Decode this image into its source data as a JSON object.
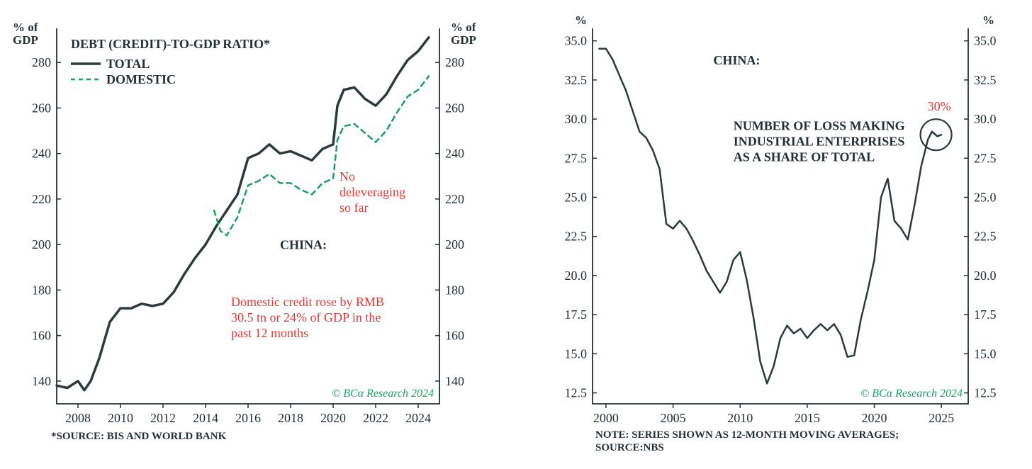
{
  "leftChart": {
    "type": "line",
    "y_axis_label_left": "% of\nGDP",
    "y_axis_label_right": "% of\nGDP",
    "ylim": [
      130,
      295
    ],
    "ytick_step": 20,
    "yticks": [
      140,
      160,
      180,
      200,
      220,
      240,
      260,
      280
    ],
    "xlim": [
      2007,
      2025
    ],
    "xticks": [
      2008,
      2010,
      2012,
      2014,
      2016,
      2018,
      2020,
      2022,
      2024
    ],
    "legend_title": "DEBT (CREDIT)-TO-GDP RATIO*",
    "legend_items": [
      {
        "label": "TOTAL",
        "style": "solid",
        "color": "#2b3a3d"
      },
      {
        "label": "DOMESTIC",
        "style": "dashed",
        "color": "#18a05e"
      }
    ],
    "series_total_color": "#2b3a3d",
    "series_total_width": 3.5,
    "series_domestic_color": "#18a05e",
    "series_domestic_width": 2.5,
    "annotation1": "No\ndeleveraging\nso far",
    "annotation1_color": "#e53935",
    "annotation2_title": "CHINA:",
    "annotation3": "Domestic credit rose by RMB\n30.5 tn or 24% of GDP in the\npast 12 months",
    "annotation3_color": "#e53935",
    "copyright": "© BCα Research 2024",
    "source": "*SOURCE: BIS AND WORLD BANK",
    "series_total": [
      [
        2007.0,
        138
      ],
      [
        2007.5,
        137
      ],
      [
        2008.0,
        140
      ],
      [
        2008.3,
        136
      ],
      [
        2008.6,
        140
      ],
      [
        2009.0,
        150
      ],
      [
        2009.5,
        166
      ],
      [
        2010.0,
        172
      ],
      [
        2010.5,
        172
      ],
      [
        2011.0,
        174
      ],
      [
        2011.5,
        173
      ],
      [
        2012.0,
        174
      ],
      [
        2012.5,
        179
      ],
      [
        2013.0,
        187
      ],
      [
        2013.5,
        194
      ],
      [
        2014.0,
        200
      ],
      [
        2014.5,
        208
      ],
      [
        2015.0,
        215
      ],
      [
        2015.5,
        222
      ],
      [
        2016.0,
        238
      ],
      [
        2016.5,
        240
      ],
      [
        2017.0,
        244
      ],
      [
        2017.5,
        240
      ],
      [
        2018.0,
        241
      ],
      [
        2018.5,
        239
      ],
      [
        2019.0,
        237
      ],
      [
        2019.5,
        242
      ],
      [
        2020.0,
        244
      ],
      [
        2020.2,
        261
      ],
      [
        2020.5,
        268
      ],
      [
        2021.0,
        269
      ],
      [
        2021.5,
        264
      ],
      [
        2022.0,
        261
      ],
      [
        2022.5,
        266
      ],
      [
        2023.0,
        274
      ],
      [
        2023.5,
        281
      ],
      [
        2024.0,
        285
      ],
      [
        2024.5,
        291
      ]
    ],
    "series_domestic": [
      [
        2014.4,
        215
      ],
      [
        2014.7,
        206
      ],
      [
        2015.0,
        204
      ],
      [
        2015.5,
        212
      ],
      [
        2016.0,
        226
      ],
      [
        2016.5,
        228
      ],
      [
        2017.0,
        231
      ],
      [
        2017.5,
        227
      ],
      [
        2018.0,
        227
      ],
      [
        2018.5,
        224
      ],
      [
        2019.0,
        222
      ],
      [
        2019.5,
        227
      ],
      [
        2020.0,
        229
      ],
      [
        2020.2,
        246
      ],
      [
        2020.5,
        252
      ],
      [
        2021.0,
        253
      ],
      [
        2021.5,
        249
      ],
      [
        2022.0,
        245
      ],
      [
        2022.5,
        250
      ],
      [
        2023.0,
        258
      ],
      [
        2023.5,
        265
      ],
      [
        2024.0,
        268
      ],
      [
        2024.5,
        274
      ]
    ]
  },
  "rightChart": {
    "type": "line",
    "y_axis_label_left": "%",
    "y_axis_label_right": "%",
    "ylim": [
      11.8,
      35.8
    ],
    "yticks": [
      12.5,
      15.0,
      17.5,
      20.0,
      22.5,
      25.0,
      27.5,
      30.0,
      32.5,
      35.0
    ],
    "xlim": [
      1999,
      2027
    ],
    "xticks": [
      2000,
      2005,
      2010,
      2015,
      2020,
      2025
    ],
    "series_color": "#2b3a3d",
    "series_width": 2.5,
    "title_text": "CHINA:",
    "body_text": "NUMBER OF LOSS MAKING\nINDUSTRIAL ENTERPRISES\nAS A SHARE OF TOTAL",
    "callout_label": "30%",
    "callout_color": "#e53935",
    "circle_color": "#2b3a3d",
    "copyright": "© BCα Research 2024",
    "note": "NOTE: SERIES SHOWN AS 12-MONTH MOVING AVERAGES;\nSOURCE:NBS",
    "series": [
      [
        1999.5,
        34.5
      ],
      [
        2000.0,
        34.5
      ],
      [
        2000.5,
        33.8
      ],
      [
        2001.0,
        32.8
      ],
      [
        2001.5,
        31.8
      ],
      [
        2002.0,
        30.5
      ],
      [
        2002.5,
        29.2
      ],
      [
        2003.0,
        28.8
      ],
      [
        2003.5,
        28.0
      ],
      [
        2004.0,
        26.8
      ],
      [
        2004.5,
        23.3
      ],
      [
        2005.0,
        23.0
      ],
      [
        2005.5,
        23.5
      ],
      [
        2006.0,
        23.0
      ],
      [
        2006.5,
        22.2
      ],
      [
        2007.0,
        21.3
      ],
      [
        2007.5,
        20.3
      ],
      [
        2008.0,
        19.6
      ],
      [
        2008.5,
        18.9
      ],
      [
        2009.0,
        19.6
      ],
      [
        2009.5,
        21.0
      ],
      [
        2010.0,
        21.5
      ],
      [
        2010.5,
        19.7
      ],
      [
        2011.0,
        17.3
      ],
      [
        2011.5,
        14.5
      ],
      [
        2012.0,
        13.1
      ],
      [
        2012.5,
        14.2
      ],
      [
        2013.0,
        16.0
      ],
      [
        2013.5,
        16.8
      ],
      [
        2014.0,
        16.3
      ],
      [
        2014.5,
        16.6
      ],
      [
        2015.0,
        16.0
      ],
      [
        2015.5,
        16.5
      ],
      [
        2016.0,
        16.9
      ],
      [
        2016.5,
        16.5
      ],
      [
        2017.0,
        16.9
      ],
      [
        2017.5,
        16.2
      ],
      [
        2018.0,
        14.8
      ],
      [
        2018.5,
        14.9
      ],
      [
        2019.0,
        17.2
      ],
      [
        2019.5,
        19.0
      ],
      [
        2020.0,
        21.0
      ],
      [
        2020.5,
        25.0
      ],
      [
        2021.0,
        26.2
      ],
      [
        2021.5,
        23.5
      ],
      [
        2022.0,
        23.0
      ],
      [
        2022.5,
        22.3
      ],
      [
        2023.0,
        24.5
      ],
      [
        2023.5,
        27.0
      ],
      [
        2024.0,
        28.7
      ],
      [
        2024.3,
        29.2
      ],
      [
        2024.7,
        28.9
      ],
      [
        2025.0,
        29.0
      ]
    ]
  }
}
